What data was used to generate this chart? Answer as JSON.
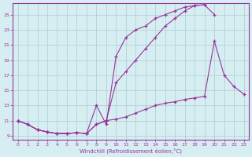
{
  "xlabel": "Windchill (Refroidissement éolien,°C)",
  "background_color": "#d6eef2",
  "grid_color": "#aacccc",
  "line_color": "#993399",
  "xlim": [
    -0.5,
    23.5
  ],
  "ylim": [
    8.5,
    26.5
  ],
  "yticks": [
    9,
    11,
    13,
    15,
    17,
    19,
    21,
    23,
    25
  ],
  "xticks": [
    0,
    1,
    2,
    3,
    4,
    5,
    6,
    7,
    8,
    9,
    10,
    11,
    12,
    13,
    14,
    15,
    16,
    17,
    18,
    19,
    20,
    21,
    22,
    23
  ],
  "line1_x": [
    0,
    1,
    2,
    3,
    4,
    5,
    6,
    7,
    8,
    9,
    10,
    11,
    12,
    13,
    14,
    15,
    16,
    17,
    18,
    19
  ],
  "line1_y": [
    11.0,
    10.5,
    9.8,
    9.5,
    9.3,
    9.3,
    9.4,
    9.3,
    10.5,
    11.0,
    16.0,
    17.5,
    19.0,
    20.5,
    22.0,
    23.5,
    24.5,
    25.5,
    26.2,
    26.3
  ],
  "line2_x": [
    0,
    1,
    2,
    3,
    4,
    5,
    6,
    7,
    8,
    9,
    10,
    11,
    12,
    13,
    14,
    15,
    16,
    17,
    18,
    19,
    20
  ],
  "line2_y": [
    11.0,
    10.5,
    9.8,
    9.5,
    9.3,
    9.3,
    9.4,
    9.3,
    13.0,
    10.5,
    19.5,
    22.0,
    23.0,
    23.5,
    24.5,
    25.0,
    25.5,
    26.0,
    26.2,
    26.3,
    25.0
  ],
  "line3_x": [
    0,
    1,
    2,
    3,
    4,
    5,
    6,
    7,
    8,
    9,
    10,
    11,
    12,
    13,
    14,
    15,
    16,
    17,
    18,
    19,
    20,
    21,
    22,
    23
  ],
  "line3_y": [
    11.0,
    10.5,
    9.8,
    9.5,
    9.3,
    9.3,
    9.4,
    9.3,
    10.5,
    11.0,
    11.2,
    11.5,
    12.0,
    12.5,
    13.0,
    13.3,
    13.5,
    13.8,
    14.0,
    14.2,
    21.5,
    17.0,
    15.5,
    14.5
  ]
}
